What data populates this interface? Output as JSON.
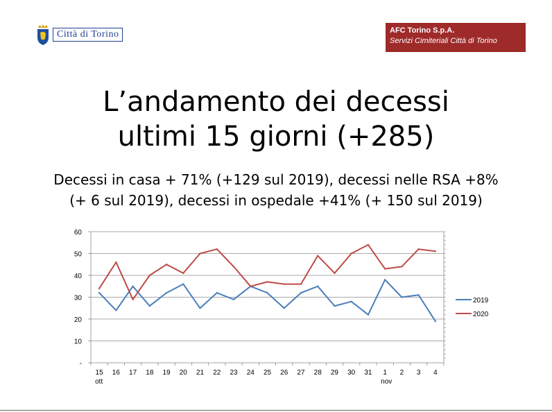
{
  "header": {
    "logo_text": "Città di Torino",
    "company": "AFC Torino S.p.A.",
    "company_sub": "Servizi Cimiteriali Città di Torino"
  },
  "title_lines": [
    "L’andamento dei decessi",
    "ultimi 15 giorni (+285)"
  ],
  "subtitle_lines": [
    "Decessi in casa + 71% (+129 sul 2019), decessi nelle RSA  +8%",
    "(+ 6 sul 2019), decessi in ospedale +41% (+ 150 sul 2019)"
  ],
  "colors": {
    "series_2019": "#4a7ebb",
    "series_2020": "#be4b48",
    "badge": "#9e2a2a"
  },
  "chart_data": {
    "type": "line",
    "x": [
      "15",
      "16",
      "17",
      "18",
      "19",
      "20",
      "21",
      "22",
      "23",
      "24",
      "25",
      "26",
      "27",
      "28",
      "29",
      "30",
      "31",
      "1",
      "2",
      "3",
      "4"
    ],
    "x_sublabels": {
      "0": "ott",
      "17": "nov"
    },
    "series": [
      {
        "name": "2019",
        "values": [
          32,
          24,
          35,
          26,
          32,
          36,
          25,
          32,
          29,
          35,
          32,
          25,
          32,
          35,
          26,
          28,
          22,
          38,
          30,
          31,
          19
        ]
      },
      {
        "name": "2020",
        "values": [
          34,
          46,
          29,
          40,
          45,
          41,
          50,
          52,
          44,
          35,
          37,
          36,
          36,
          49,
          41,
          50,
          54,
          43,
          44,
          52,
          51
        ]
      }
    ],
    "yticks": [
      "-",
      "10",
      "20",
      "30",
      "40",
      "50",
      "60"
    ],
    "ylim": [
      0,
      60
    ],
    "grid": true,
    "legend": "right"
  }
}
